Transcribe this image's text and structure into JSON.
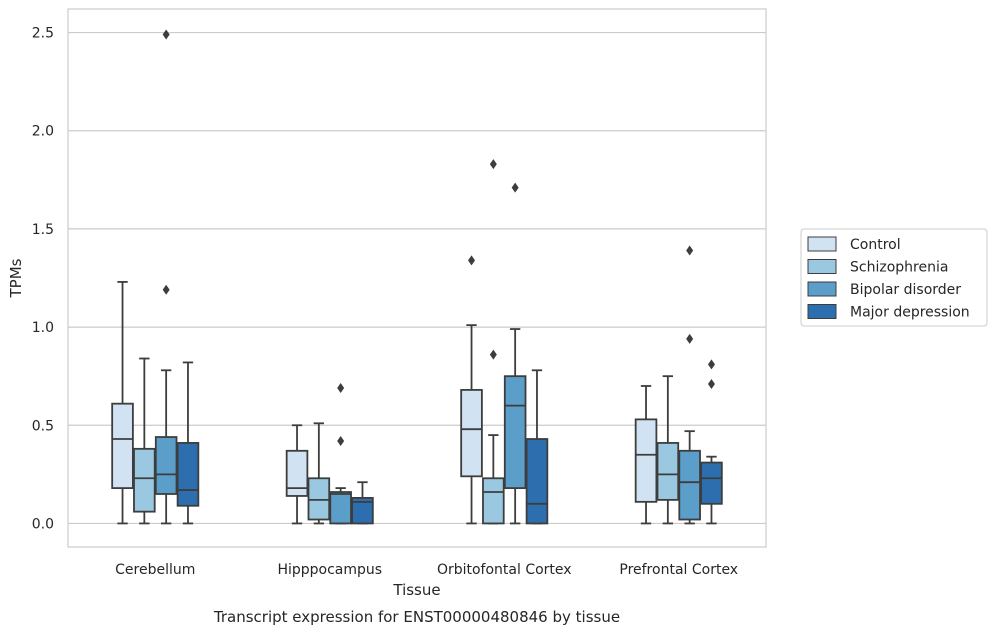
{
  "caption": "Transcript expression for ENST00000480846 by tissue",
  "chart_data": {
    "type": "box",
    "xlabel": "Tissue",
    "ylabel": "TPMs",
    "ylim": [
      -0.12,
      2.62
    ],
    "yticks": [
      0.0,
      0.5,
      1.0,
      1.5,
      2.0,
      2.5
    ],
    "ytick_labels": [
      "0.0",
      "0.5",
      "1.0",
      "1.5",
      "2.0",
      "2.5"
    ],
    "grid": "horizontal",
    "legend_position": "right",
    "categories": [
      "Cerebellum",
      "Hipppocampus",
      "Orbitofontal Cortex",
      "Prefrontal Cortex"
    ],
    "series": [
      {
        "name": "Control",
        "color": "#d1e2f2",
        "boxes": [
          {
            "whislo": 0.0,
            "q1": 0.18,
            "med": 0.43,
            "q3": 0.61,
            "whishi": 1.23,
            "fliers": []
          },
          {
            "whislo": 0.0,
            "q1": 0.14,
            "med": 0.18,
            "q3": 0.37,
            "whishi": 0.5,
            "fliers": []
          },
          {
            "whislo": 0.0,
            "q1": 0.24,
            "med": 0.48,
            "q3": 0.68,
            "whishi": 1.01,
            "fliers": [
              1.34
            ]
          },
          {
            "whislo": 0.0,
            "q1": 0.11,
            "med": 0.35,
            "q3": 0.53,
            "whishi": 0.7,
            "fliers": []
          }
        ]
      },
      {
        "name": "Schizophrenia",
        "color": "#9ac8e0",
        "boxes": [
          {
            "whislo": 0.0,
            "q1": 0.06,
            "med": 0.23,
            "q3": 0.38,
            "whishi": 0.84,
            "fliers": []
          },
          {
            "whislo": 0.0,
            "q1": 0.02,
            "med": 0.12,
            "q3": 0.23,
            "whishi": 0.51,
            "fliers": []
          },
          {
            "whislo": 0.0,
            "q1": 0.0,
            "med": 0.16,
            "q3": 0.23,
            "whishi": 0.45,
            "fliers": [
              0.86,
              1.83
            ]
          },
          {
            "whislo": 0.0,
            "q1": 0.12,
            "med": 0.25,
            "q3": 0.41,
            "whishi": 0.75,
            "fliers": []
          }
        ]
      },
      {
        "name": "Bipolar disorder",
        "color": "#5a9ec9",
        "boxes": [
          {
            "whislo": 0.0,
            "q1": 0.15,
            "med": 0.25,
            "q3": 0.44,
            "whishi": 0.78,
            "fliers": [
              1.19,
              2.49
            ]
          },
          {
            "whislo": 0.0,
            "q1": 0.0,
            "med": 0.15,
            "q3": 0.16,
            "whishi": 0.18,
            "fliers": [
              0.42,
              0.69
            ]
          },
          {
            "whislo": 0.0,
            "q1": 0.18,
            "med": 0.6,
            "q3": 0.75,
            "whishi": 0.99,
            "fliers": [
              1.71
            ]
          },
          {
            "whislo": 0.0,
            "q1": 0.02,
            "med": 0.21,
            "q3": 0.37,
            "whishi": 0.47,
            "fliers": [
              0.94,
              1.39
            ]
          }
        ]
      },
      {
        "name": "Major depression",
        "color": "#2d6fae",
        "boxes": [
          {
            "whislo": 0.0,
            "q1": 0.09,
            "med": 0.17,
            "q3": 0.41,
            "whishi": 0.82,
            "fliers": []
          },
          {
            "whislo": 0.0,
            "q1": 0.0,
            "med": 0.11,
            "q3": 0.13,
            "whishi": 0.21,
            "fliers": []
          },
          {
            "whislo": 0.0,
            "q1": 0.0,
            "med": 0.1,
            "q3": 0.43,
            "whishi": 0.78,
            "fliers": []
          },
          {
            "whislo": 0.0,
            "q1": 0.1,
            "med": 0.23,
            "q3": 0.31,
            "whishi": 0.34,
            "fliers": [
              0.71,
              0.81
            ]
          }
        ]
      }
    ]
  }
}
